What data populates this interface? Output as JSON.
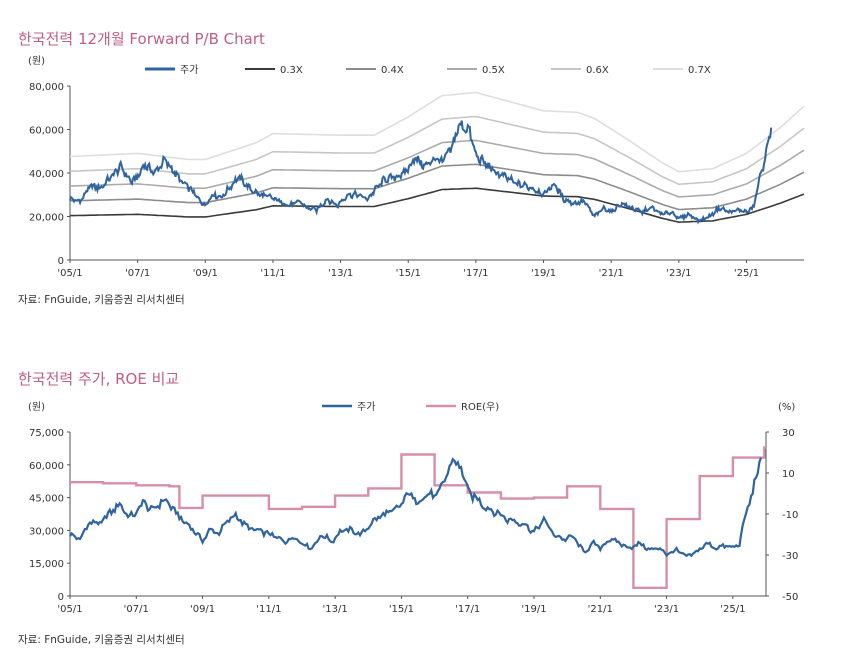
{
  "colors": {
    "title": "#c0607f",
    "price": "#2f64a0",
    "roe": "#d88fa6",
    "pb03": "#3a3a3a",
    "pb04": "#8c8c8c",
    "pb05": "#ababab",
    "pb06": "#c6c6c6",
    "pb07": "#dedede"
  },
  "source_text_1": "자료: FnGuide, 키움증권 리서치센터",
  "source_text_2": "자료: FnGuide, 키움증권 리서치센터",
  "chart_data": [
    {
      "type": "line",
      "title": "한국전력 12개월 Forward P/B Chart",
      "ylabel": "(원)",
      "ylim": [
        0,
        80000
      ],
      "yticks": [
        "80,000",
        "60,000",
        "40,000",
        "20,000",
        "0"
      ],
      "ytick_values": [
        80000,
        60000,
        40000,
        20000,
        0
      ],
      "xlim": [
        2005.0,
        2026.7
      ],
      "xticks": [
        "'05/1",
        "'07/1",
        "'09/1",
        "'11/1",
        "'13/1",
        "'15/1",
        "'17/1",
        "'19/1",
        "'21/1",
        "'23/1",
        "'25/1"
      ],
      "xtick_values": [
        2005,
        2007,
        2009,
        2011,
        2013,
        2015,
        2017,
        2019,
        2021,
        2023,
        2025
      ],
      "legend": [
        "주가",
        "0.3X",
        "0.4X",
        "0.5X",
        "0.6X",
        "0.7X"
      ],
      "bps_x": [
        2005.0,
        2007.0,
        2008.5,
        2009.0,
        2010.5,
        2011.0,
        2013.0,
        2014.0,
        2015.0,
        2016.0,
        2017.0,
        2018.0,
        2019.0,
        2020.0,
        2020.5,
        2021.5,
        2022.5,
        2023.0,
        2024.0,
        2025.0,
        2026.0,
        2026.7
      ],
      "bps": [
        68000,
        70000,
        66000,
        66000,
        77000,
        83000,
        82000,
        82000,
        94000,
        108000,
        110000,
        104000,
        98000,
        97000,
        93000,
        79000,
        64000,
        58000,
        60000,
        70000,
        87000,
        101000
      ],
      "multiples": [
        0.3,
        0.4,
        0.5,
        0.6,
        0.7
      ],
      "price_x": [
        2005.0,
        2005.3,
        2005.6,
        2005.9,
        2006.2,
        2006.5,
        2006.8,
        2007.0,
        2007.2,
        2007.5,
        2007.8,
        2008.0,
        2008.3,
        2008.6,
        2008.8,
        2009.0,
        2009.2,
        2009.5,
        2009.8,
        2010.0,
        2010.3,
        2010.6,
        2010.9,
        2011.2,
        2011.5,
        2011.8,
        2012.0,
        2012.3,
        2012.6,
        2012.9,
        2013.2,
        2013.5,
        2013.8,
        2014.0,
        2014.3,
        2014.6,
        2014.9,
        2015.2,
        2015.5,
        2015.8,
        2016.0,
        2016.3,
        2016.5,
        2016.8,
        2017.0,
        2017.3,
        2017.6,
        2017.9,
        2018.2,
        2018.5,
        2018.8,
        2019.0,
        2019.3,
        2019.6,
        2019.9,
        2020.2,
        2020.5,
        2020.8,
        2021.0,
        2021.3,
        2021.6,
        2021.9,
        2022.2,
        2022.5,
        2022.8,
        2023.0,
        2023.3,
        2023.6,
        2023.9,
        2024.2,
        2024.5,
        2024.8,
        2025.0,
        2025.2,
        2025.4,
        2025.6,
        2025.75
      ],
      "price": [
        28000,
        27000,
        34000,
        33000,
        38000,
        43000,
        36000,
        38000,
        44000,
        40000,
        46000,
        42000,
        36000,
        32000,
        28000,
        25000,
        30000,
        29000,
        35000,
        38000,
        33000,
        30000,
        29000,
        27000,
        25000,
        27000,
        24000,
        23000,
        28000,
        25000,
        30000,
        30000,
        28000,
        32000,
        37000,
        38000,
        40000,
        47000,
        43000,
        47000,
        45000,
        52000,
        62000,
        60000,
        48000,
        44000,
        40000,
        38000,
        35000,
        34000,
        32000,
        30000,
        35000,
        28000,
        26000,
        27000,
        20000,
        24000,
        22000,
        26000,
        24000,
        22000,
        24000,
        21000,
        22000,
        19000,
        21000,
        18000,
        20000,
        24000,
        22000,
        23000,
        22000,
        24000,
        38000,
        50000,
        64000
      ]
    },
    {
      "type": "line",
      "title": "한국전력 주가, ROE 비교",
      "ylabel_left": "(원)",
      "ylabel_right": "(%)",
      "ylim_left": [
        0,
        75000
      ],
      "ylim_right": [
        -50,
        30
      ],
      "yticks_left": [
        "75,000",
        "60,000",
        "45,000",
        "30,000",
        "15,000",
        "0"
      ],
      "ytick_values_left": [
        75000,
        60000,
        45000,
        30000,
        15000,
        0
      ],
      "yticks_right": [
        "30",
        "10",
        "-10",
        "-30",
        "-50"
      ],
      "ytick_values_right": [
        30,
        10,
        -10,
        -30,
        -50
      ],
      "xlim": [
        2005.0,
        2026.0
      ],
      "xticks": [
        "'05/1",
        "'07/1",
        "'09/1",
        "'11/1",
        "'13/1",
        "'15/1",
        "'17/1",
        "'19/1",
        "'21/1",
        "'23/1",
        "'25/1"
      ],
      "xtick_values": [
        2005,
        2007,
        2009,
        2011,
        2013,
        2015,
        2017,
        2019,
        2021,
        2023,
        2025
      ],
      "legend": [
        "주가",
        "ROE(우)"
      ],
      "roe_x": [
        2005.0,
        2006.0,
        2007.0,
        2008.0,
        2008.3,
        2009.0,
        2010.0,
        2011.0,
        2012.0,
        2013.0,
        2014.0,
        2015.0,
        2016.0,
        2017.0,
        2018.0,
        2019.0,
        2020.0,
        2021.0,
        2022.0,
        2023.0,
        2024.0,
        2025.0,
        2025.95
      ],
      "roe": [
        5.5,
        5,
        4,
        3.5,
        -7,
        -1,
        -1,
        -7.5,
        -6.5,
        -1,
        2.5,
        19,
        4,
        0.5,
        -2.5,
        -2,
        3.5,
        -7.5,
        -46,
        -12.5,
        8.5,
        17.5,
        22.5
      ],
      "price_x": [
        2005.0,
        2005.3,
        2005.6,
        2005.9,
        2006.2,
        2006.5,
        2006.8,
        2007.0,
        2007.2,
        2007.5,
        2007.8,
        2008.0,
        2008.3,
        2008.6,
        2008.8,
        2009.0,
        2009.2,
        2009.5,
        2009.8,
        2010.0,
        2010.3,
        2010.6,
        2010.9,
        2011.2,
        2011.5,
        2011.8,
        2012.0,
        2012.3,
        2012.6,
        2012.9,
        2013.2,
        2013.5,
        2013.8,
        2014.0,
        2014.3,
        2014.6,
        2014.9,
        2015.2,
        2015.5,
        2015.8,
        2016.0,
        2016.3,
        2016.5,
        2016.8,
        2017.0,
        2017.3,
        2017.6,
        2017.9,
        2018.2,
        2018.5,
        2018.8,
        2019.0,
        2019.3,
        2019.6,
        2019.9,
        2020.2,
        2020.5,
        2020.8,
        2021.0,
        2021.3,
        2021.6,
        2021.9,
        2022.2,
        2022.5,
        2022.8,
        2023.0,
        2023.3,
        2023.6,
        2023.9,
        2024.2,
        2024.5,
        2024.8,
        2025.0,
        2025.2,
        2025.4,
        2025.6,
        2025.85
      ],
      "price": [
        28000,
        26000,
        34000,
        33000,
        38000,
        42000,
        36000,
        38000,
        43000,
        39000,
        44000,
        42000,
        36000,
        32000,
        29000,
        25000,
        30000,
        29000,
        35000,
        37000,
        32000,
        30000,
        29000,
        27000,
        25000,
        27000,
        24000,
        22000,
        28000,
        25000,
        30000,
        30000,
        28000,
        32000,
        36000,
        38000,
        40000,
        47000,
        43000,
        47000,
        45000,
        52000,
        62000,
        59000,
        48000,
        44000,
        40000,
        38000,
        35000,
        34000,
        32000,
        29000,
        35000,
        28000,
        26000,
        27000,
        20000,
        24000,
        22000,
        26000,
        24000,
        22000,
        24000,
        21000,
        22000,
        19000,
        21000,
        18000,
        20000,
        24000,
        22000,
        23000,
        22000,
        24000,
        38000,
        48000,
        63000
      ]
    }
  ]
}
